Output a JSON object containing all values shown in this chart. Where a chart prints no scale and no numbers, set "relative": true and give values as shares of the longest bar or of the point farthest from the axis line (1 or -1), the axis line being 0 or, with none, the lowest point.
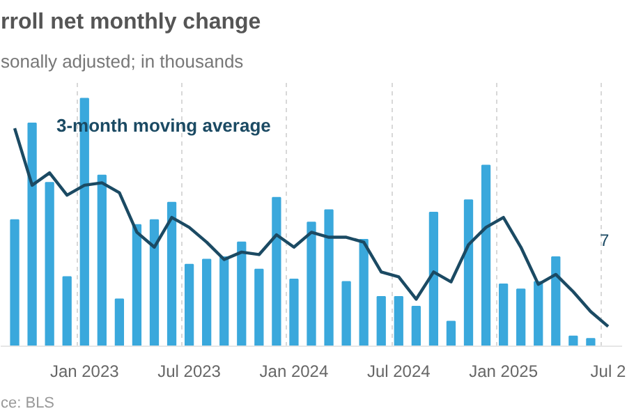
{
  "chart_data": {
    "type": "bar",
    "title": "rroll net monthly change",
    "subtitle": "sonally adjusted; in thousands",
    "relative": true,
    "grid": "x",
    "categories": [
      null,
      null,
      null,
      null,
      "Jan 2023",
      null,
      null,
      null,
      null,
      null,
      "Jul 2023",
      null,
      null,
      null,
      null,
      null,
      "Jan 2024",
      null,
      null,
      null,
      null,
      null,
      "Jul 2024",
      null,
      null,
      null,
      null,
      null,
      "Jan 2025",
      null,
      null,
      null,
      null,
      null,
      "Jul 2"
    ],
    "series": [
      {
        "color": "#3aa8dc",
        "values": [
          0.51,
          0.9,
          0.66,
          0.28,
          1,
          0.69,
          0.19,
          0.49,
          0.51,
          0.58,
          0.33,
          0.35,
          0.36,
          0.42,
          0.31,
          0.6,
          0.27,
          0.5,
          0.55,
          0.26,
          0.43,
          0.2,
          0.2,
          0.16,
          0.54,
          0.1,
          0.59,
          0.73,
          0.25,
          0.23,
          0.26,
          0.36,
          0.04,
          0.03,
          null
        ]
      },
      {
        "type": "line",
        "name": "3-month moving average",
        "color": "#1b4a63",
        "values": [
          0.88,
          0.65,
          0.7,
          0.61,
          0.65,
          0.66,
          0.62,
          0.46,
          0.4,
          0.52,
          0.48,
          0.42,
          0.35,
          0.38,
          0.37,
          0.45,
          0.4,
          0.46,
          0.44,
          0.44,
          0.42,
          0.3,
          0.28,
          0.19,
          0.3,
          0.26,
          0.41,
          0.48,
          0.52,
          0.4,
          0.25,
          0.29,
          0.22,
          0.14,
          0.08
        ]
      }
    ],
    "annotations": [
      "7",
      "ce: BLS"
    ]
  }
}
